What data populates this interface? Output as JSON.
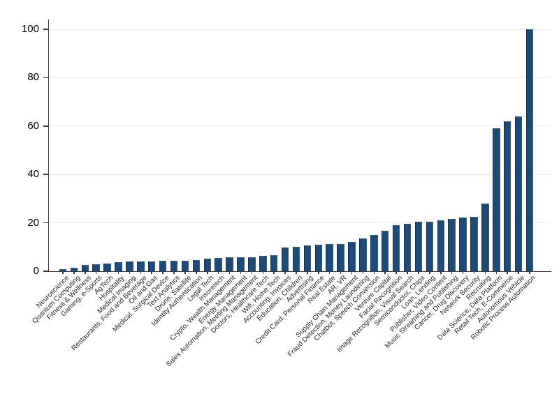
{
  "page": {
    "background": "#ffffff"
  },
  "chart_data": {
    "type": "bar",
    "title": "",
    "xlabel": "",
    "ylabel": "",
    "ylim": [
      0,
      100
    ],
    "yticks": [
      0,
      20,
      40,
      60,
      80,
      100
    ],
    "grid": "horizontal",
    "legend": "none",
    "categories": [
      "Neuroscience",
      "Quantum Computing",
      "Fitness & Wellness",
      "Gaming, e-Sports",
      "AgTech",
      "Hospitality",
      "Medical Imaging",
      "Restaurants, Food and Beverage",
      "Oil and Gas",
      "Medical, Surgical Device",
      "Text Analytics",
      "Drone, Satellite",
      "Identity Authentication",
      "Legal Tech",
      "Insuretech",
      "Crypto, Wealth Management",
      "Energy Management",
      "Sales Automation, Meeting Management",
      "Doctors, Healthcare Tech",
      "Wifi, Home Tech",
      "Accounting, Invoices",
      "Education, Children",
      "Advertising",
      "Credit Card, Personal Finance",
      "Real Estate",
      "AR, VR",
      "Supply Chain Management",
      "Fraud Detection, Money Laundering",
      "Chatbot, Speech Conversion",
      "Venture Capital",
      "Facial Recognition",
      "Image Recognition, Visual Search",
      "Semiconductor, Chips",
      "Loan, Lending",
      "Publisher, Video Content",
      "Music Streaming and Publishing",
      "Cancer, Drug Discovery",
      "Network Security",
      "Recruiting",
      "Data Science, Data Platform",
      "Retail Tech, E-Commerce",
      "Autonomous Vehicle",
      "Robotic Process Automation"
    ],
    "values": [
      0.9,
      1.4,
      2.5,
      2.9,
      3.1,
      3.8,
      4.0,
      4.1,
      4.1,
      4.2,
      4.4,
      4.4,
      4.5,
      5.3,
      5.6,
      5.8,
      5.8,
      5.9,
      6.3,
      6.5,
      9.7,
      10.1,
      10.6,
      10.9,
      11.1,
      11.3,
      12.0,
      13.6,
      15.1,
      16.6,
      19.1,
      19.6,
      20.4,
      20.6,
      20.9,
      21.6,
      22.1,
      22.4,
      28.0,
      59.0,
      62.0,
      64.0,
      100.0
    ],
    "colors": {
      "bar": "#1E4A73",
      "bar_edge_dark": "#133458",
      "bar_edge_light": "#2F5E8D",
      "gridline": "#E9EEF3",
      "axis": "#3A3A3A",
      "ytick_label": "#000000",
      "category_label": "#262626",
      "background": "#FFFFFF"
    }
  }
}
